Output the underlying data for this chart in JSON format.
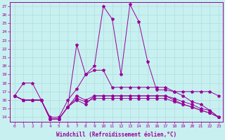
{
  "xlabel": "Windchill (Refroidissement éolien,°C)",
  "background_color": "#c8f0f0",
  "grid_color": "#b0dede",
  "line_color": "#990099",
  "x_values": [
    0,
    1,
    2,
    3,
    4,
    5,
    6,
    7,
    8,
    9,
    10,
    11,
    12,
    13,
    14,
    15,
    16,
    17,
    18,
    19,
    20,
    21,
    22,
    23
  ],
  "ylim": [
    13.5,
    27.5
  ],
  "yticks": [
    14,
    15,
    16,
    17,
    18,
    19,
    20,
    21,
    22,
    23,
    24,
    25,
    26,
    27
  ],
  "line1": [
    16.5,
    18.0,
    18.0,
    16.0,
    14.0,
    14.0,
    16.0,
    17.3,
    19.0,
    19.5,
    19.5,
    17.5,
    17.5,
    17.5,
    17.5,
    17.5,
    17.5,
    17.5,
    17.0,
    17.0,
    17.0,
    17.0,
    17.0,
    16.5
  ],
  "line2": [
    16.5,
    16.0,
    16.0,
    16.0,
    13.8,
    13.8,
    15.2,
    22.5,
    19.0,
    20.0,
    27.0,
    25.5,
    19.0,
    27.2,
    25.2,
    20.5,
    17.2,
    17.2,
    17.0,
    16.5,
    15.8,
    15.5,
    14.8,
    14.0
  ],
  "line3": [
    16.5,
    16.0,
    16.0,
    16.0,
    13.8,
    13.8,
    15.2,
    16.0,
    15.5,
    16.5,
    16.5,
    16.5,
    16.5,
    16.5,
    16.5,
    16.5,
    16.5,
    16.5,
    16.0,
    15.5,
    15.2,
    14.8,
    14.5,
    14.0
  ],
  "line4": [
    16.5,
    16.0,
    16.0,
    16.0,
    13.8,
    13.8,
    15.2,
    16.5,
    16.0,
    16.5,
    16.5,
    16.5,
    16.5,
    16.5,
    16.5,
    16.5,
    16.5,
    16.5,
    16.2,
    15.8,
    15.5,
    15.0,
    14.8,
    14.0
  ],
  "line5": [
    16.5,
    16.0,
    16.0,
    16.0,
    13.8,
    13.8,
    15.2,
    16.2,
    15.8,
    16.2,
    16.2,
    16.2,
    16.2,
    16.2,
    16.2,
    16.2,
    16.2,
    16.2,
    15.8,
    15.5,
    15.2,
    14.8,
    14.5,
    14.0
  ]
}
